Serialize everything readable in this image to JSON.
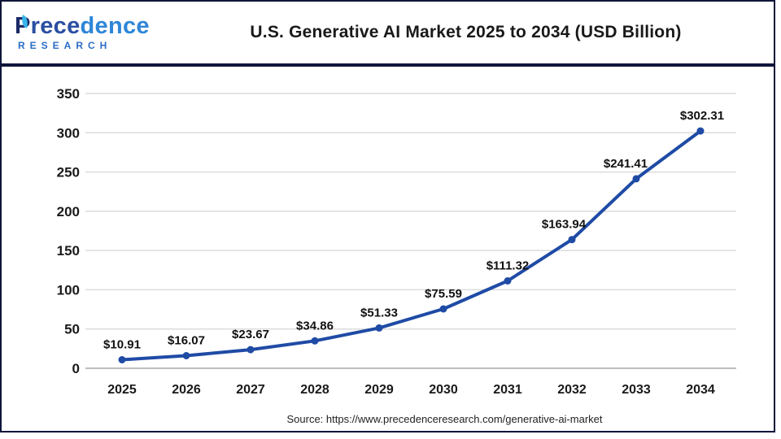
{
  "header": {
    "logo": {
      "word_start": "P",
      "word_mid": "rece",
      "word_end": "dence",
      "subtitle": "RESEARCH"
    }
  },
  "chart_data": {
    "type": "line",
    "title": "U.S. Generative AI Market 2025 to 2034 (USD Billion)",
    "categories": [
      "2025",
      "2026",
      "2027",
      "2028",
      "2029",
      "2030",
      "2031",
      "2032",
      "2033",
      "2034"
    ],
    "values": [
      10.91,
      16.07,
      23.67,
      34.86,
      51.33,
      75.59,
      111.32,
      163.94,
      241.41,
      302.31
    ],
    "value_labels": [
      "$10.91",
      "$16.07",
      "$23.67",
      "$34.86",
      "$51.33",
      "$75.59",
      "$111.32",
      "$163.94",
      "$241.41",
      "$302.31"
    ],
    "xlabel": "",
    "ylabel": "",
    "ylim": [
      0,
      350
    ],
    "yticks": [
      0,
      50,
      100,
      150,
      200,
      250,
      300,
      350
    ],
    "grid": "horizontal",
    "legend": "none",
    "series_name": "U.S. Generative AI Market (USD Billion)",
    "series_color": "#1f4ba5",
    "gridline_color": "#dcdcdc",
    "zeroline_color": "#bdbdbd",
    "label_color": "#1a1a1a"
  },
  "footer": {
    "source": "Source: https://www.precedenceresearch.com/generative-ai-market"
  },
  "colors": {
    "frame": "#0f153a",
    "background": "#ffffff",
    "accent_blue": "#1f4ba5"
  }
}
